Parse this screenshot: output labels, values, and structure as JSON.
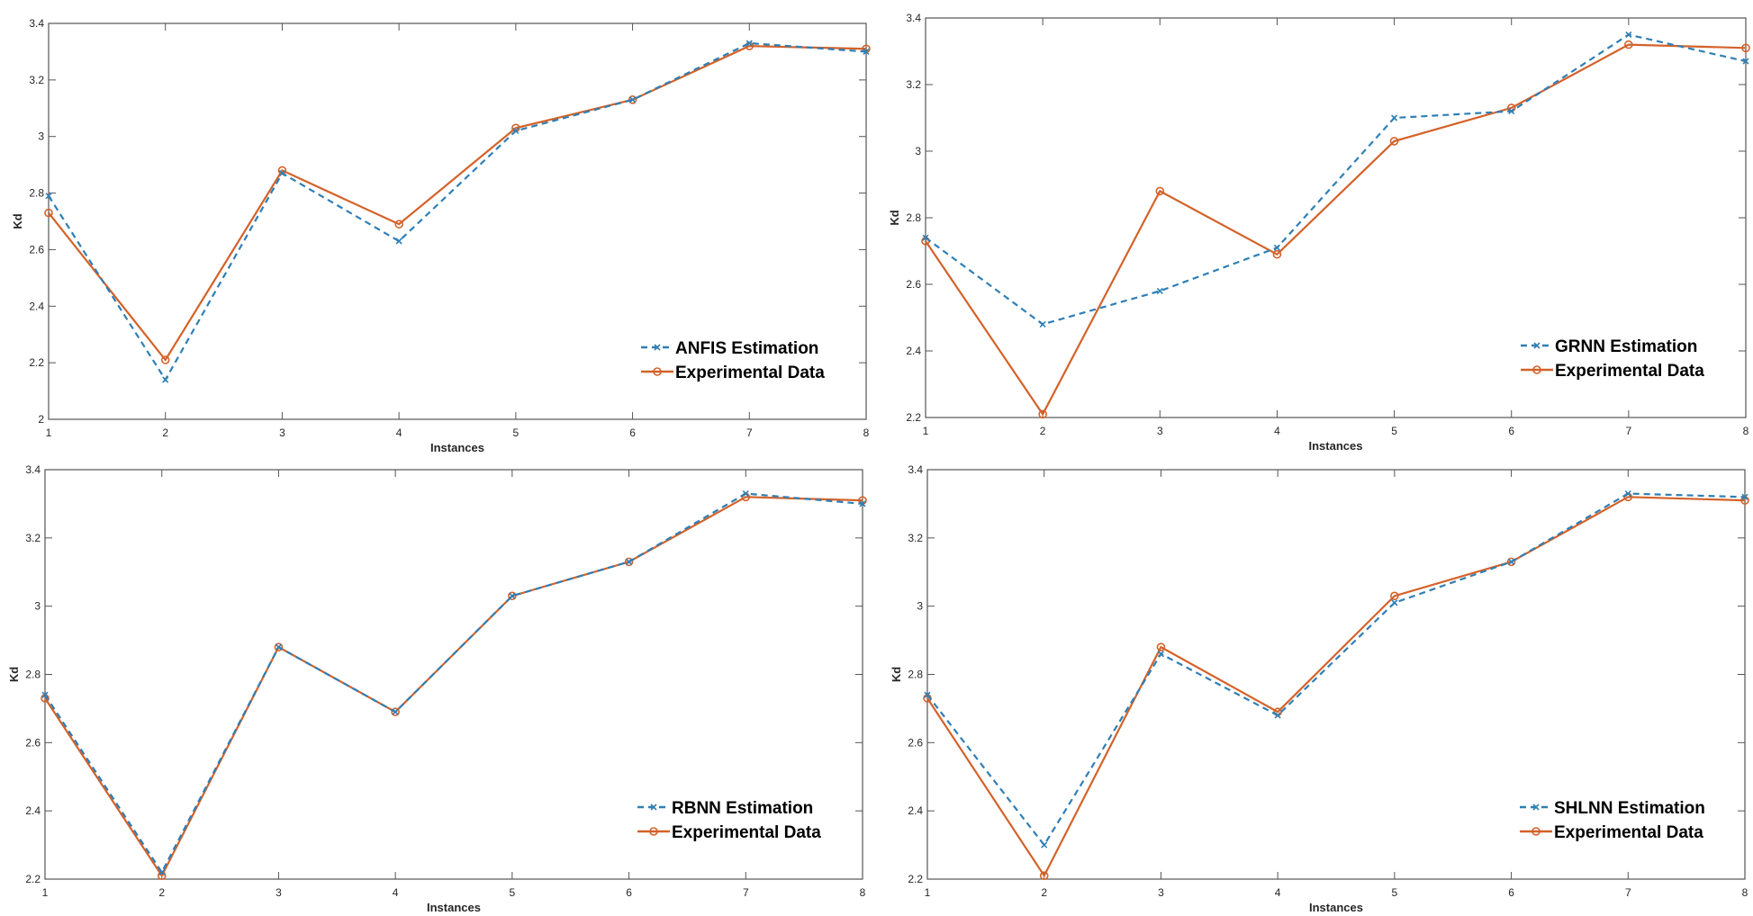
{
  "colors": {
    "estimation": "#2f7fb5",
    "experimental": "#d4622a",
    "axis": "#555555"
  },
  "chart_data": [
    {
      "type": "line",
      "xlabel": "Instances",
      "ylabel": "Kd",
      "xlim": [
        1,
        8
      ],
      "ylim": [
        2,
        3.4
      ],
      "xticks": [
        "1",
        "2",
        "3",
        "4",
        "5",
        "6",
        "7",
        "8"
      ],
      "yticks": [
        "2",
        "2.2",
        "2.4",
        "2.6",
        "2.8",
        "3",
        "3.2",
        "3.4"
      ],
      "legend": "bottom-right",
      "x": [
        1,
        2,
        3,
        4,
        5,
        6,
        7,
        8
      ],
      "series": [
        {
          "name": "ANFIS Estimation",
          "style": "dashed-x",
          "values": [
            2.79,
            2.14,
            2.87,
            2.63,
            3.02,
            3.13,
            3.33,
            3.3
          ]
        },
        {
          "name": "Experimental Data",
          "style": "solid-o",
          "values": [
            2.73,
            2.21,
            2.88,
            2.69,
            3.03,
            3.13,
            3.32,
            3.31
          ]
        }
      ]
    },
    {
      "type": "line",
      "xlabel": "Instances",
      "ylabel": "Kd",
      "xlim": [
        1,
        8
      ],
      "ylim": [
        2.2,
        3.4
      ],
      "xticks": [
        "1",
        "2",
        "3",
        "4",
        "5",
        "6",
        "7",
        "8"
      ],
      "yticks": [
        "2.2",
        "2.4",
        "2.6",
        "2.8",
        "3",
        "3.2",
        "3.4"
      ],
      "legend": "bottom-right",
      "x": [
        1,
        2,
        3,
        4,
        5,
        6,
        7,
        8
      ],
      "series": [
        {
          "name": "GRNN Estimation",
          "style": "dashed-x",
          "values": [
            2.74,
            2.48,
            2.58,
            2.71,
            3.1,
            3.12,
            3.35,
            3.27
          ]
        },
        {
          "name": "Experimental Data",
          "style": "solid-o",
          "values": [
            2.73,
            2.21,
            2.88,
            2.69,
            3.03,
            3.13,
            3.32,
            3.31
          ]
        }
      ]
    },
    {
      "type": "line",
      "xlabel": "Instances",
      "ylabel": "Kd",
      "xlim": [
        1,
        8
      ],
      "ylim": [
        2.2,
        3.4
      ],
      "xticks": [
        "1",
        "2",
        "3",
        "4",
        "5",
        "6",
        "7",
        "8"
      ],
      "yticks": [
        "2.2",
        "2.4",
        "2.6",
        "2.8",
        "3",
        "3.2",
        "3.4"
      ],
      "legend": "bottom-right",
      "x": [
        1,
        2,
        3,
        4,
        5,
        6,
        7,
        8
      ],
      "series": [
        {
          "name": "RBNN Estimation",
          "style": "dashed-x",
          "values": [
            2.74,
            2.22,
            2.88,
            2.69,
            3.03,
            3.13,
            3.33,
            3.3
          ]
        },
        {
          "name": "Experimental Data",
          "style": "solid-o",
          "values": [
            2.73,
            2.21,
            2.88,
            2.69,
            3.03,
            3.13,
            3.32,
            3.31
          ]
        }
      ]
    },
    {
      "type": "line",
      "xlabel": "Instances",
      "ylabel": "Kd",
      "xlim": [
        1,
        8
      ],
      "ylim": [
        2.2,
        3.4
      ],
      "xticks": [
        "1",
        "2",
        "3",
        "4",
        "5",
        "6",
        "7",
        "8"
      ],
      "yticks": [
        "2.2",
        "2.4",
        "2.6",
        "2.8",
        "3",
        "3.2",
        "3.4"
      ],
      "legend": "bottom-right",
      "x": [
        1,
        2,
        3,
        4,
        5,
        6,
        7,
        8
      ],
      "series": [
        {
          "name": "SHLNN Estimation",
          "style": "dashed-x",
          "values": [
            2.74,
            2.3,
            2.86,
            2.68,
            3.01,
            3.13,
            3.33,
            3.32
          ]
        },
        {
          "name": "Experimental Data",
          "style": "solid-o",
          "values": [
            2.73,
            2.21,
            2.88,
            2.69,
            3.03,
            3.13,
            3.32,
            3.31
          ]
        }
      ]
    }
  ]
}
